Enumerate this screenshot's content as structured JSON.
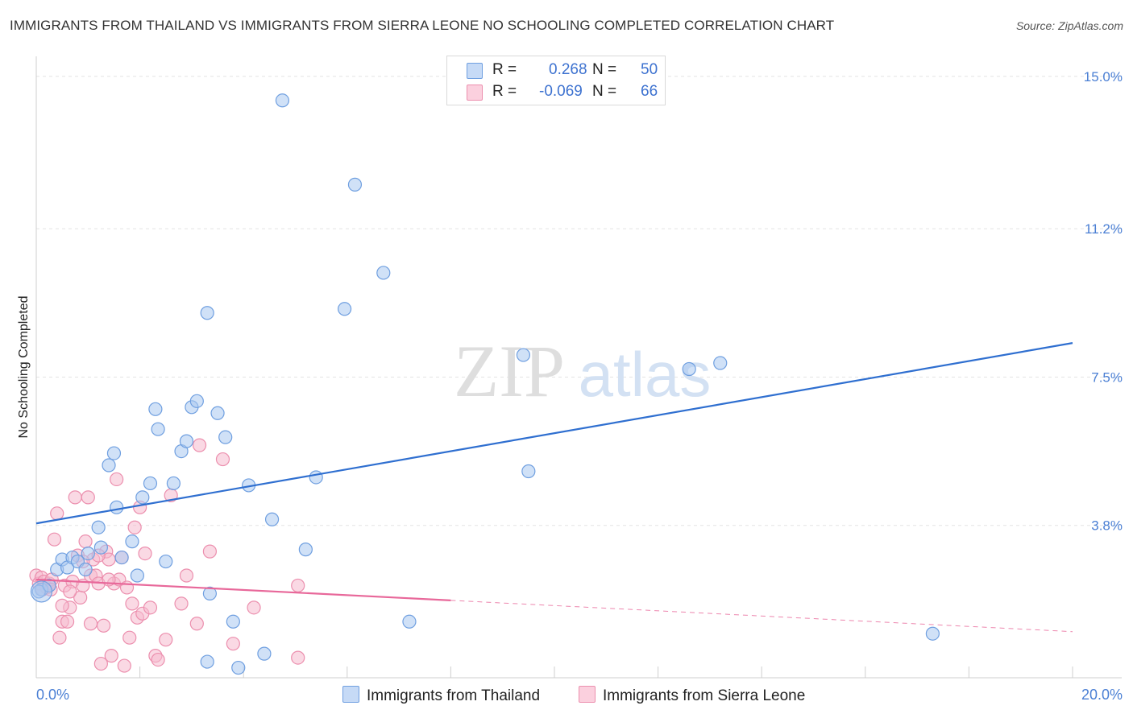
{
  "title": "IMMIGRANTS FROM THAILAND VS IMMIGRANTS FROM SIERRA LEONE NO SCHOOLING COMPLETED CORRELATION CHART",
  "source": "Source: ZipAtlas.com",
  "watermark": {
    "zip": "ZIP",
    "atlas": "atlas"
  },
  "legend": {
    "rows": [
      {
        "r_label": "R =",
        "r_value": "0.268",
        "n_label": "N =",
        "n_value": "50",
        "color": "#aac8f0"
      },
      {
        "r_label": "R =",
        "r_value": "-0.069",
        "n_label": "N =",
        "n_value": "66",
        "color": "#f6b9cd"
      }
    ]
  },
  "bottom_legend": [
    {
      "label": "Immigrants from Thailand",
      "color": "#aac8f0"
    },
    {
      "label": "Immigrants from Sierra Leone",
      "color": "#f6b9cd"
    }
  ],
  "colors": {
    "thailand_fill": "#aac8f0",
    "thailand_stroke": "#6f9fe0",
    "thailand_line": "#2f6fd0",
    "sierra_fill": "#f6b9cd",
    "sierra_stroke": "#ec8fae",
    "sierra_line": "#e8689a",
    "tick_text": "#4a7fd4",
    "grid": "#e3e3e3"
  },
  "chart_data": {
    "type": "scatter",
    "title": "IMMIGRANTS FROM THAILAND VS IMMIGRANTS FROM SIERRA LEONE NO SCHOOLING COMPLETED CORRELATION CHART",
    "xlabel": "",
    "ylabel": "No Schooling Completed",
    "xlim": [
      0,
      20
    ],
    "ylim": [
      0,
      15.5
    ],
    "x_tick_labels": [
      {
        "value": 0,
        "label": "0.0%"
      },
      {
        "value": 20,
        "label": "20.0%"
      }
    ],
    "y_tick_labels": [
      {
        "value": 3.8,
        "label": "3.8%"
      },
      {
        "value": 7.5,
        "label": "7.5%"
      },
      {
        "value": 11.2,
        "label": "11.2%"
      },
      {
        "value": 15.0,
        "label": "15.0%"
      }
    ],
    "x_minor_ticks": [
      2,
      4,
      6,
      8,
      10,
      12,
      14,
      16,
      18,
      20
    ],
    "grid": true,
    "legend_position": "top-center",
    "series": [
      {
        "name": "Immigrants from Thailand",
        "r": 0.268,
        "n": 50,
        "trend": {
          "x": [
            0,
            20
          ],
          "y": [
            3.85,
            8.35
          ],
          "dashed_from": null
        },
        "points": [
          [
            0.1,
            2.2
          ],
          [
            0.4,
            2.7
          ],
          [
            0.5,
            2.95
          ],
          [
            0.6,
            2.75
          ],
          [
            0.7,
            3.0
          ],
          [
            0.8,
            2.9
          ],
          [
            0.95,
            2.7
          ],
          [
            1.0,
            3.1
          ],
          [
            1.2,
            3.75
          ],
          [
            1.25,
            3.25
          ],
          [
            1.4,
            5.3
          ],
          [
            1.5,
            5.6
          ],
          [
            1.55,
            4.25
          ],
          [
            1.65,
            3.0
          ],
          [
            1.85,
            3.4
          ],
          [
            1.95,
            2.55
          ],
          [
            2.05,
            4.5
          ],
          [
            2.2,
            4.85
          ],
          [
            2.3,
            6.7
          ],
          [
            2.35,
            6.2
          ],
          [
            2.5,
            2.9
          ],
          [
            2.65,
            4.85
          ],
          [
            2.8,
            5.65
          ],
          [
            2.9,
            5.9
          ],
          [
            3.0,
            6.75
          ],
          [
            3.1,
            6.9
          ],
          [
            3.3,
            0.4
          ],
          [
            3.3,
            9.1
          ],
          [
            3.35,
            2.1
          ],
          [
            3.5,
            6.6
          ],
          [
            3.65,
            6.0
          ],
          [
            3.8,
            1.4
          ],
          [
            3.9,
            0.25
          ],
          [
            4.1,
            4.8
          ],
          [
            4.4,
            0.6
          ],
          [
            4.55,
            3.95
          ],
          [
            4.75,
            14.4
          ],
          [
            5.2,
            3.2
          ],
          [
            5.4,
            5.0
          ],
          [
            5.95,
            9.2
          ],
          [
            6.15,
            12.3
          ],
          [
            6.7,
            10.1
          ],
          [
            7.2,
            1.4
          ],
          [
            9.4,
            8.05
          ],
          [
            9.5,
            5.15
          ],
          [
            12.6,
            7.7
          ],
          [
            13.2,
            7.85
          ],
          [
            17.3,
            1.1
          ],
          [
            0.05,
            2.15
          ],
          [
            0.25,
            2.3
          ]
        ]
      },
      {
        "name": "Immigrants from Sierra Leone",
        "r": -0.069,
        "n": 66,
        "trend": {
          "x": [
            0,
            20
          ],
          "y": [
            2.45,
            1.15
          ],
          "dashed_from": 8.0
        },
        "points": [
          [
            0.0,
            2.55
          ],
          [
            0.05,
            2.35
          ],
          [
            0.1,
            2.5
          ],
          [
            0.15,
            2.4
          ],
          [
            0.2,
            2.25
          ],
          [
            0.25,
            2.35
          ],
          [
            0.3,
            2.45
          ],
          [
            0.35,
            3.45
          ],
          [
            0.4,
            4.1
          ],
          [
            0.45,
            1.0
          ],
          [
            0.5,
            1.4
          ],
          [
            0.55,
            2.3
          ],
          [
            0.6,
            1.4
          ],
          [
            0.65,
            1.75
          ],
          [
            0.7,
            2.4
          ],
          [
            0.75,
            4.5
          ],
          [
            0.8,
            3.05
          ],
          [
            0.85,
            2.0
          ],
          [
            0.9,
            2.3
          ],
          [
            0.95,
            3.4
          ],
          [
            1.0,
            4.5
          ],
          [
            1.05,
            2.55
          ],
          [
            1.1,
            2.95
          ],
          [
            1.15,
            2.55
          ],
          [
            1.2,
            2.35
          ],
          [
            1.25,
            0.35
          ],
          [
            1.3,
            1.3
          ],
          [
            1.35,
            3.15
          ],
          [
            1.4,
            2.95
          ],
          [
            1.45,
            0.55
          ],
          [
            1.5,
            2.35
          ],
          [
            1.55,
            4.95
          ],
          [
            1.6,
            2.45
          ],
          [
            1.65,
            3.0
          ],
          [
            1.7,
            0.3
          ],
          [
            1.75,
            2.25
          ],
          [
            1.8,
            1.0
          ],
          [
            1.85,
            1.85
          ],
          [
            1.9,
            3.75
          ],
          [
            1.95,
            1.5
          ],
          [
            2.0,
            4.25
          ],
          [
            2.05,
            1.6
          ],
          [
            2.1,
            3.1
          ],
          [
            2.2,
            1.75
          ],
          [
            2.3,
            0.55
          ],
          [
            2.35,
            0.45
          ],
          [
            2.5,
            0.95
          ],
          [
            2.6,
            4.55
          ],
          [
            2.8,
            1.85
          ],
          [
            2.9,
            2.55
          ],
          [
            3.1,
            1.35
          ],
          [
            3.15,
            5.8
          ],
          [
            3.35,
            3.15
          ],
          [
            3.6,
            5.45
          ],
          [
            3.8,
            0.85
          ],
          [
            4.2,
            1.75
          ],
          [
            5.05,
            2.3
          ],
          [
            5.05,
            0.5
          ],
          [
            0.12,
            2.2
          ],
          [
            0.28,
            2.2
          ],
          [
            0.5,
            1.8
          ],
          [
            0.9,
            2.9
          ],
          [
            1.2,
            3.05
          ],
          [
            1.4,
            2.45
          ],
          [
            1.05,
            1.35
          ],
          [
            0.65,
            2.15
          ]
        ]
      }
    ]
  }
}
